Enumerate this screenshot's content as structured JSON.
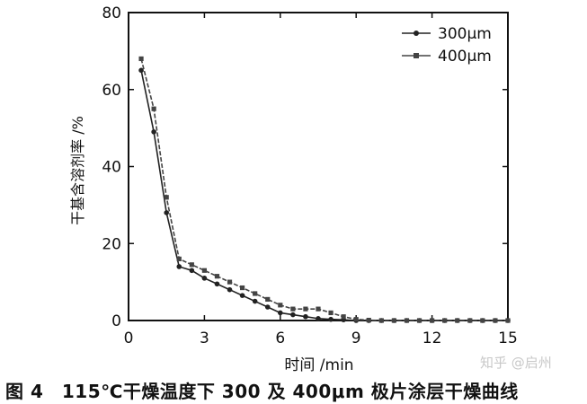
{
  "chart_data": {
    "type": "line",
    "xlabel": "时间 /min",
    "ylabel": "干基含溶剂率 /%",
    "xlim": [
      0,
      15
    ],
    "ylim": [
      0,
      80
    ],
    "xticks": [
      0,
      3,
      6,
      9,
      12,
      15
    ],
    "yticks": [
      0,
      20,
      40,
      60,
      80
    ],
    "grid": false,
    "legend_position": "top-right",
    "series": [
      {
        "name": "300μm",
        "marker": "circle",
        "color": "#222222",
        "x": [
          0.5,
          1.0,
          1.5,
          2.0,
          2.5,
          3.0,
          3.5,
          4.0,
          4.5,
          5.0,
          5.5,
          6.0,
          6.5,
          7.0,
          7.5,
          8.0,
          8.5,
          9.0,
          9.5,
          10,
          10.5,
          11,
          11.5,
          12,
          12.5,
          13,
          13.5,
          14,
          14.5,
          15
        ],
        "y": [
          65,
          49,
          28,
          14,
          13,
          11,
          9.5,
          8,
          6.5,
          5,
          3.5,
          2,
          1.5,
          1,
          0.5,
          0.3,
          0.2,
          0,
          0,
          0,
          0,
          0,
          0,
          0,
          0,
          0,
          0,
          0,
          0,
          0
        ]
      },
      {
        "name": "400μm",
        "marker": "square",
        "color": "#444444",
        "x": [
          0.5,
          1.0,
          1.5,
          2.0,
          2.5,
          3.0,
          3.5,
          4.0,
          4.5,
          5.0,
          5.5,
          6.0,
          6.5,
          7.0,
          7.5,
          8.0,
          8.5,
          9.0,
          9.5,
          10,
          10.5,
          11,
          11.5,
          12,
          12.5,
          13,
          13.5,
          14,
          14.5,
          15
        ],
        "y": [
          68,
          55,
          32,
          16,
          14.5,
          13,
          11.5,
          10,
          8.5,
          7,
          5.5,
          4,
          3,
          3,
          3,
          2,
          1,
          0.3,
          0.1,
          0,
          0,
          0,
          0,
          0,
          0,
          0,
          0,
          0,
          0,
          0
        ]
      }
    ]
  },
  "caption": "图 4　115℃干燥温度下 300 及 400μm 极片涂层干燥曲线",
  "watermark": "知乎 @启州"
}
